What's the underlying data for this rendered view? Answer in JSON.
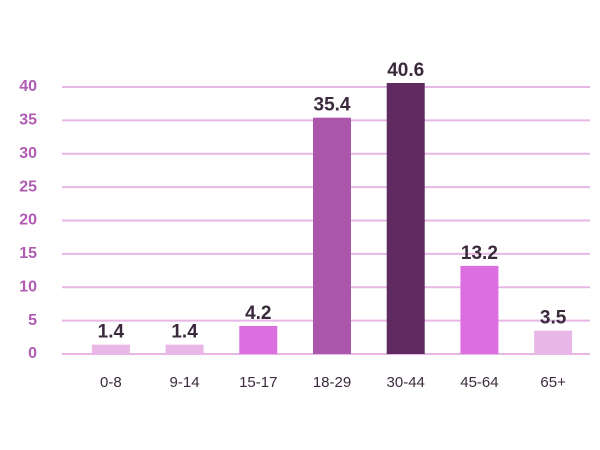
{
  "chart_data": {
    "type": "bar",
    "categories": [
      "0-8",
      "9-14",
      "15-17",
      "18-29",
      "30-44",
      "45-64",
      "65+"
    ],
    "values": [
      1.4,
      1.4,
      4.2,
      35.4,
      40.6,
      13.2,
      3.5
    ],
    "colors": [
      "#e9b6e8",
      "#e9b6e8",
      "#dc6fe0",
      "#a956ab",
      "#5e2a5f",
      "#dc6fe0",
      "#e9b6e8"
    ],
    "ylim": [
      0,
      40
    ],
    "yticks": [
      0,
      5,
      10,
      15,
      20,
      25,
      30,
      35,
      40
    ],
    "grid": true
  }
}
